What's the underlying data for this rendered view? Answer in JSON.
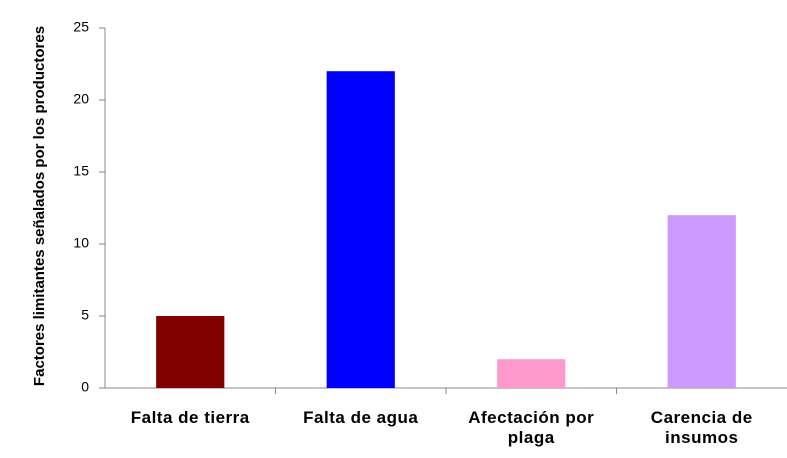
{
  "chart_data": {
    "type": "bar",
    "y_label": "Factores limitantes señalados por los productores",
    "categories": [
      "Falta de tierra",
      "Falta de agua",
      "Afectación por plaga",
      "Carencia de insumos"
    ],
    "values": [
      5,
      22,
      2,
      12
    ],
    "colors": [
      "#800000",
      "#0000ff",
      "#ff99cc",
      "#cc99ff"
    ],
    "ylim": [
      0,
      25
    ],
    "yticks": [
      0,
      5,
      10,
      15,
      20,
      25
    ],
    "grid": false
  }
}
